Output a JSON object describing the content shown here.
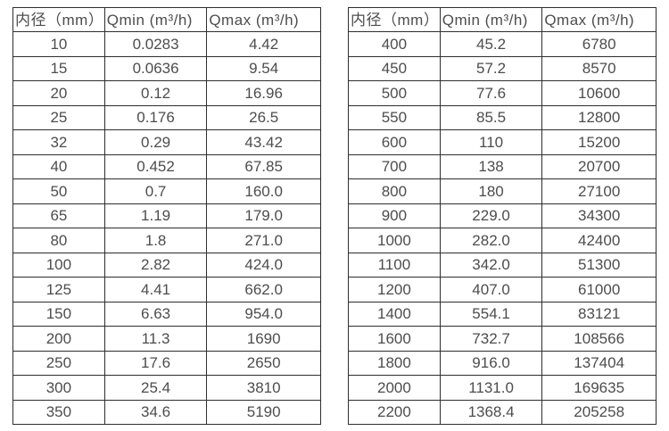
{
  "tables": [
    {
      "name": "flow-range-table-small-diameters",
      "headers": [
        "内径（mm）",
        "Qmin (m³/h)",
        "Qmax (m³/h)"
      ],
      "rows": [
        [
          "10",
          "0.0283",
          "4.42"
        ],
        [
          "15",
          "0.0636",
          "9.54"
        ],
        [
          "20",
          "0.12",
          "16.96"
        ],
        [
          "25",
          "0.176",
          "26.5"
        ],
        [
          "32",
          "0.29",
          "43.42"
        ],
        [
          "40",
          "0.452",
          "67.85"
        ],
        [
          "50",
          "0.7",
          "160.0"
        ],
        [
          "65",
          "1.19",
          "179.0"
        ],
        [
          "80",
          "1.8",
          "271.0"
        ],
        [
          "100",
          "2.82",
          "424.0"
        ],
        [
          "125",
          "4.41",
          "662.0"
        ],
        [
          "150",
          "6.63",
          "954.0"
        ],
        [
          "200",
          "11.3",
          "1690"
        ],
        [
          "250",
          "17.6",
          "2650"
        ],
        [
          "300",
          "25.4",
          "3810"
        ],
        [
          "350",
          "34.6",
          "5190"
        ]
      ]
    },
    {
      "name": "flow-range-table-large-diameters",
      "headers": [
        "内径（mm）",
        "Qmin (m³/h)",
        "Qmax (m³/h)"
      ],
      "rows": [
        [
          "400",
          "45.2",
          "6780"
        ],
        [
          "450",
          "57.2",
          "8570"
        ],
        [
          "500",
          "77.6",
          "10600"
        ],
        [
          "550",
          "85.5",
          "12800"
        ],
        [
          "600",
          "110",
          "15200"
        ],
        [
          "700",
          "138",
          "20700"
        ],
        [
          "800",
          "180",
          "27100"
        ],
        [
          "900",
          "229.0",
          "34300"
        ],
        [
          "1000",
          "282.0",
          "42400"
        ],
        [
          "1100",
          "342.0",
          "51300"
        ],
        [
          "1200",
          "407.0",
          "61000"
        ],
        [
          "1400",
          "554.1",
          "83121"
        ],
        [
          "1600",
          "732.7",
          "108566"
        ],
        [
          "1800",
          "916.0",
          "137404"
        ],
        [
          "2000",
          "1131.0",
          "169635"
        ],
        [
          "2200",
          "1368.4",
          "205258"
        ]
      ]
    }
  ],
  "colors": {
    "border": "#2e2e2e",
    "text": "#4d4d4d",
    "background": "#ffffff"
  }
}
